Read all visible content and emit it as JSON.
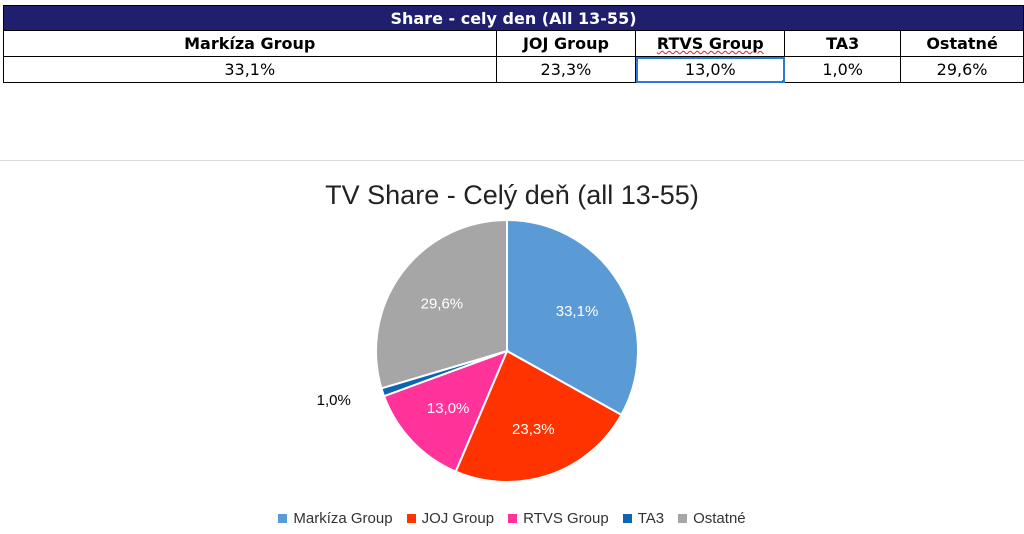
{
  "table": {
    "title": "Share - cely den (All 13-55)",
    "headers": [
      "Markíza Group",
      "JOJ Group",
      "RTVS Group",
      "TA3",
      "Ostatné"
    ],
    "values": [
      "33,1%",
      "23,3%",
      "13,0%",
      "1,0%",
      "29,6%"
    ]
  },
  "chart_data": {
    "type": "pie",
    "title": "TV Share - Celý deň (all 13-55)",
    "categories": [
      "Markíza Group",
      "JOJ Group",
      "RTVS Group",
      "TA3",
      "Ostatné"
    ],
    "values": [
      33.1,
      23.3,
      13.0,
      1.0,
      29.6
    ],
    "labels": [
      "33,1%",
      "23,3%",
      "13,0%",
      "1,0%",
      "29,6%"
    ],
    "colors": [
      "#5b9bd5",
      "#ff3300",
      "#ff3399",
      "#0b64b4",
      "#a6a6a6"
    ],
    "legend": "bottom"
  }
}
